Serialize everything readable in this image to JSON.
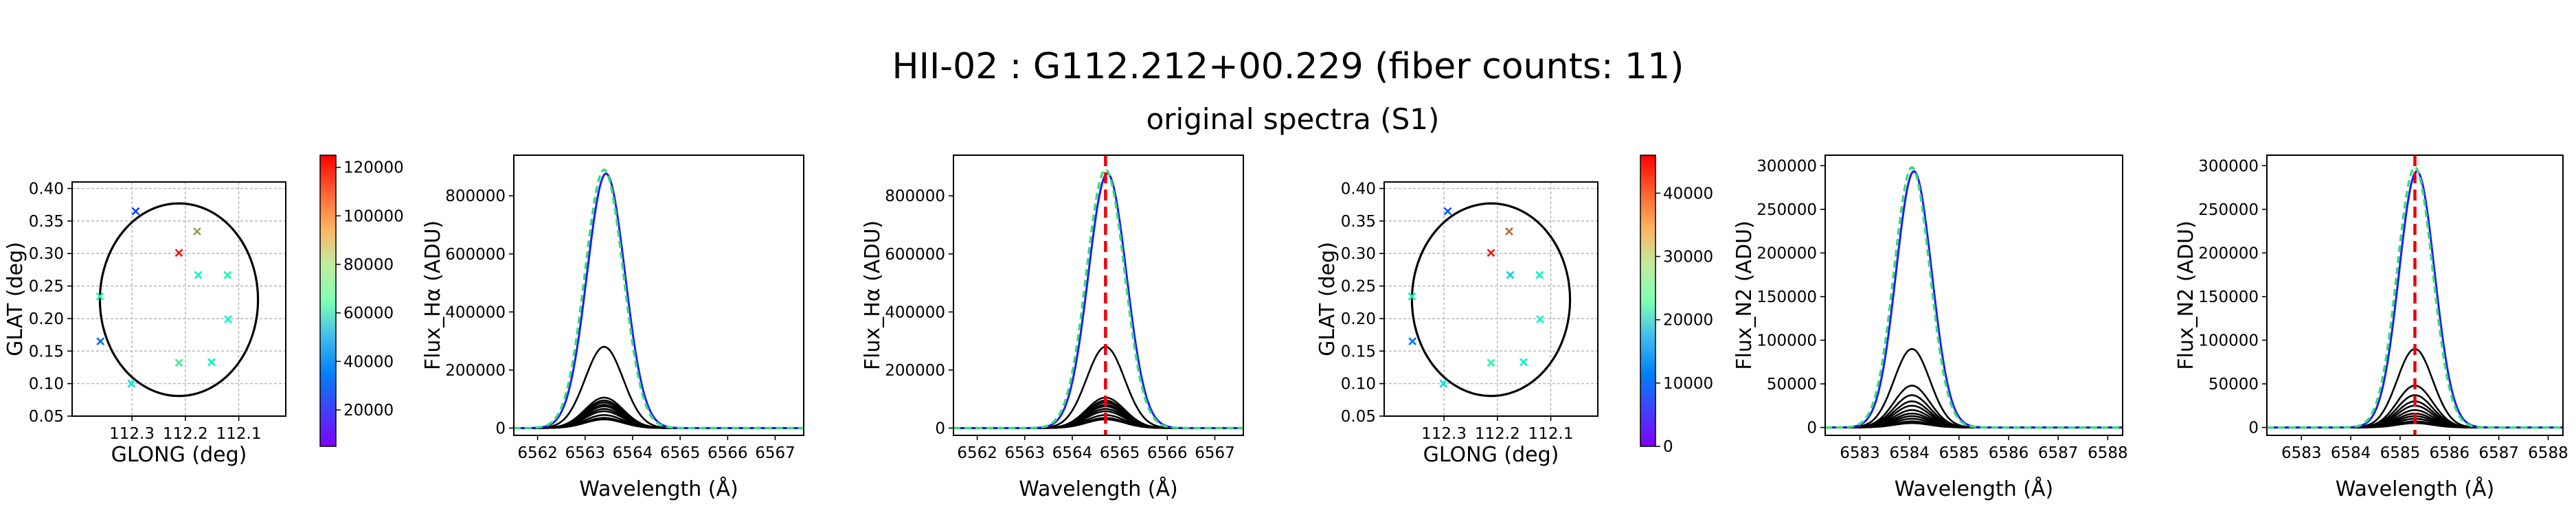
{
  "figure": {
    "title": "HII-02 : G112.212+00.229 (fiber counts: 11)",
    "subtitle": "original spectra (S1)"
  },
  "chart_data": [
    {
      "type": "scatter",
      "panel": "fiber-map-halpha",
      "xlabel": "GLONG (deg)",
      "ylabel": "GLAT (deg)",
      "xlim": [
        112.412,
        112.012
      ],
      "ylim": [
        0.05,
        0.41
      ],
      "xticks": [
        112.3,
        112.2,
        112.1
      ],
      "xtick_labels": [
        "112.3",
        "112.2",
        "112.1"
      ],
      "yticks": [
        0.05,
        0.1,
        0.15,
        0.2,
        0.25,
        0.3,
        0.35,
        0.4
      ],
      "ytick_labels": [
        "0.05",
        "0.10",
        "0.15",
        "0.20",
        "0.25",
        "0.30",
        "0.35",
        "0.40"
      ],
      "grid": true,
      "marker": "x",
      "circle": {
        "center": [
          112.212,
          0.229
        ],
        "radius_deg": 0.148
      },
      "points": [
        {
          "x": 112.293,
          "y": 0.365,
          "value": 15000
        },
        {
          "x": 112.359,
          "y": 0.165,
          "value": 22000
        },
        {
          "x": 112.301,
          "y": 0.1,
          "value": 45000
        },
        {
          "x": 112.36,
          "y": 0.234,
          "value": 70000
        },
        {
          "x": 112.212,
          "y": 0.132,
          "value": 82000
        },
        {
          "x": 112.151,
          "y": 0.133,
          "value": 55000
        },
        {
          "x": 112.176,
          "y": 0.267,
          "value": 58000
        },
        {
          "x": 112.121,
          "y": 0.267,
          "value": 68000
        },
        {
          "x": 112.12,
          "y": 0.199,
          "value": 60000
        },
        {
          "x": 112.178,
          "y": 0.334,
          "value": 100000
        },
        {
          "x": 112.212,
          "y": 0.301,
          "value": 124000
        }
      ],
      "colorbar": {
        "vmin": 5000,
        "vmax": 125000,
        "ticks": [
          20000,
          40000,
          60000,
          80000,
          100000,
          120000
        ],
        "tick_labels": [
          "20000",
          "40000",
          "60000",
          "80000",
          "100000",
          "120000"
        ]
      }
    },
    {
      "type": "line",
      "panel": "spectra-halpha",
      "xlabel": "Wavelength (Å)",
      "ylabel": "Flux_Hα (ADU)",
      "xlim": [
        6561.5,
        6567.6
      ],
      "ylim": [
        -25000,
        940000
      ],
      "xticks": [
        6562,
        6563,
        6564,
        6565,
        6566,
        6567
      ],
      "xtick_labels": [
        "6562",
        "6563",
        "6564",
        "6565",
        "6566",
        "6567"
      ],
      "yticks": [
        0,
        200000,
        400000,
        600000,
        800000
      ],
      "ytick_labels": [
        "0",
        "200000",
        "400000",
        "600000",
        "800000"
      ],
      "line": {
        "center": 6563.4,
        "sigma": 0.4,
        "peaks": [
          280000,
          105000,
          95000,
          88000,
          80000,
          75000,
          66000,
          58000,
          45000,
          35000,
          30000
        ],
        "sum_peak": 890000
      }
    },
    {
      "type": "line",
      "panel": "spectra-halpha-centered",
      "xlabel": "Wavelength (Å)",
      "ylabel": "Flux_Hα (ADU)",
      "xlim": [
        6561.5,
        6567.6
      ],
      "ylim": [
        -25000,
        940000
      ],
      "xticks": [
        6562,
        6563,
        6564,
        6565,
        6566,
        6567
      ],
      "xtick_labels": [
        "6562",
        "6563",
        "6564",
        "6565",
        "6566",
        "6567"
      ],
      "yticks": [
        0,
        200000,
        400000,
        600000,
        800000
      ],
      "ytick_labels": [
        "0",
        "200000",
        "400000",
        "600000",
        "800000"
      ],
      "line": {
        "center": 6564.7,
        "sigma": 0.4,
        "peaks": [
          280000,
          105000,
          95000,
          88000,
          80000,
          75000,
          66000,
          58000,
          45000,
          35000,
          30000
        ],
        "sum_peak": 890000
      },
      "vline": 6564.7
    },
    {
      "type": "scatter",
      "panel": "fiber-map-n2",
      "xlabel": "GLONG (deg)",
      "ylabel": "GLAT (deg)",
      "xlim": [
        112.412,
        112.012
      ],
      "ylim": [
        0.05,
        0.41
      ],
      "xticks": [
        112.3,
        112.2,
        112.1
      ],
      "xtick_labels": [
        "112.3",
        "112.2",
        "112.1"
      ],
      "yticks": [
        0.05,
        0.1,
        0.15,
        0.2,
        0.25,
        0.3,
        0.35,
        0.4
      ],
      "ytick_labels": [
        "0.05",
        "0.10",
        "0.15",
        "0.20",
        "0.25",
        "0.30",
        "0.35",
        "0.40"
      ],
      "grid": true,
      "marker": "x",
      "circle": {
        "center": [
          112.212,
          0.229
        ],
        "radius_deg": 0.148
      },
      "points": [
        {
          "x": 112.293,
          "y": 0.365,
          "value": 5000
        },
        {
          "x": 112.359,
          "y": 0.165,
          "value": 7000
        },
        {
          "x": 112.301,
          "y": 0.1,
          "value": 15000
        },
        {
          "x": 112.36,
          "y": 0.234,
          "value": 23000
        },
        {
          "x": 112.212,
          "y": 0.132,
          "value": 25000
        },
        {
          "x": 112.151,
          "y": 0.133,
          "value": 18000
        },
        {
          "x": 112.176,
          "y": 0.267,
          "value": 15000
        },
        {
          "x": 112.121,
          "y": 0.267,
          "value": 19000
        },
        {
          "x": 112.12,
          "y": 0.199,
          "value": 20000
        },
        {
          "x": 112.178,
          "y": 0.334,
          "value": 40000
        },
        {
          "x": 112.212,
          "y": 0.301,
          "value": 45000
        }
      ],
      "colorbar": {
        "vmin": 0,
        "vmax": 46000,
        "ticks": [
          0,
          10000,
          20000,
          30000,
          40000
        ],
        "tick_labels": [
          "0",
          "10000",
          "20000",
          "30000",
          "40000"
        ]
      }
    },
    {
      "type": "line",
      "panel": "spectra-n2",
      "xlabel": "Wavelength (Å)",
      "ylabel": "Flux_N2 (ADU)",
      "xlim": [
        6582.3,
        6588.3
      ],
      "ylim": [
        -9000,
        312000
      ],
      "xticks": [
        6583,
        6584,
        6585,
        6586,
        6587,
        6588
      ],
      "xtick_labels": [
        "6583",
        "6584",
        "6585",
        "6586",
        "6587",
        "6588"
      ],
      "yticks": [
        0,
        50000,
        100000,
        150000,
        200000,
        250000,
        300000
      ],
      "ytick_labels": [
        "0",
        "50000",
        "100000",
        "150000",
        "200000",
        "250000",
        "300000"
      ],
      "line": {
        "center": 6584.05,
        "sigma": 0.36,
        "peaks": [
          90000,
          48000,
          37000,
          30000,
          25000,
          20000,
          16000,
          13000,
          10000,
          7000,
          5000
        ],
        "sum_peak": 298000
      }
    },
    {
      "type": "line",
      "panel": "spectra-n2-centered",
      "xlabel": "Wavelength (Å)",
      "ylabel": "Flux_N2 (ADU)",
      "xlim": [
        6582.3,
        6588.3
      ],
      "ylim": [
        -9000,
        312000
      ],
      "xticks": [
        6583,
        6584,
        6585,
        6586,
        6587,
        6588
      ],
      "xtick_labels": [
        "6583",
        "6584",
        "6585",
        "6586",
        "6587",
        "6588"
      ],
      "yticks": [
        0,
        50000,
        100000,
        150000,
        200000,
        250000,
        300000
      ],
      "ytick_labels": [
        "0",
        "50000",
        "100000",
        "150000",
        "200000",
        "250000",
        "300000"
      ],
      "line": {
        "center": 6585.3,
        "sigma": 0.36,
        "peaks": [
          90000,
          48000,
          37000,
          30000,
          25000,
          20000,
          16000,
          13000,
          10000,
          7000,
          5000
        ],
        "sum_peak": 298000
      },
      "vline": 6585.3
    }
  ]
}
